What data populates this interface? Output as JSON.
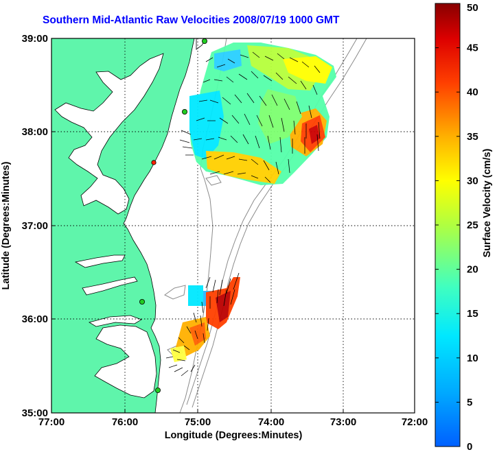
{
  "title": "Southern Mid-Atlantic Raw Velocities 2008/07/19 1000 GMT",
  "axes": {
    "xlabel": "Longitude (Degrees:Minutes)",
    "ylabel": "Latitude (Degrees:Minutes)",
    "xticks": [
      "77:00",
      "76:00",
      "75:00",
      "74:00",
      "73:00",
      "72:00"
    ],
    "yticks": [
      "39:00",
      "38:00",
      "37:00",
      "36:00",
      "35:00"
    ]
  },
  "colorbar": {
    "label": "Surface Velocity (cm/s)",
    "ticks": [
      "0",
      "5",
      "10",
      "15",
      "20",
      "25",
      "30",
      "35",
      "40",
      "45",
      "50"
    ],
    "range": [
      0,
      50
    ]
  },
  "colors": {
    "land": "#5ff5ab",
    "title": "#0000ff",
    "station_active": "#22cc22",
    "station_inactive": "#ff2200"
  }
}
